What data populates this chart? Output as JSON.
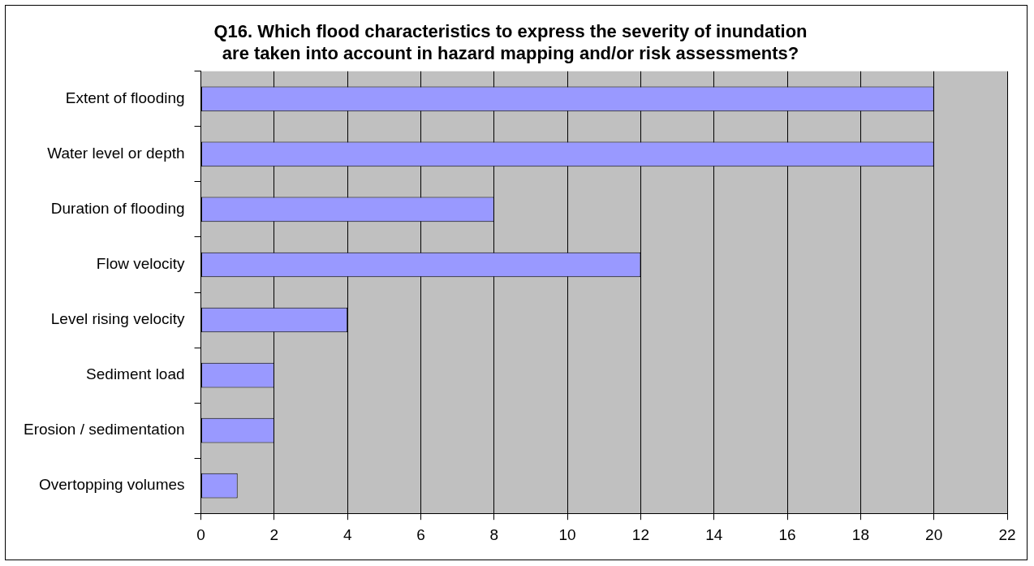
{
  "chart_data": {
    "type": "bar",
    "orientation": "horizontal",
    "title": "Q16. Which flood characteristics to express the severity of inundation are taken into account in hazard mapping and/or risk assessments?",
    "categories": [
      "Extent of flooding",
      "Water level or depth",
      "Duration of flooding",
      "Flow velocity",
      "Level rising velocity",
      "Sediment load",
      "Erosion / sedimentation",
      "Overtopping volumes"
    ],
    "values": [
      20,
      20,
      8,
      12,
      4,
      2,
      2,
      1
    ],
    "color": "#9999ff",
    "xlim": [
      0,
      22
    ],
    "xticks": [
      0,
      2,
      4,
      6,
      8,
      10,
      12,
      14,
      16,
      18,
      20,
      22
    ],
    "grid": "x",
    "legend": false
  }
}
